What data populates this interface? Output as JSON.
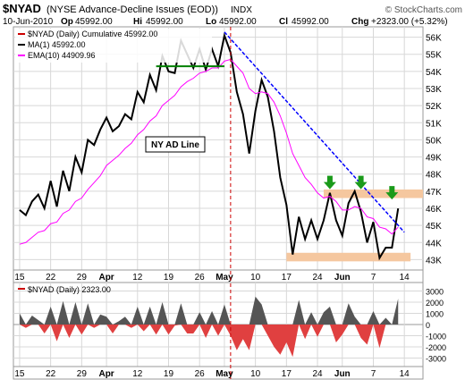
{
  "header": {
    "symbol": "$NYAD",
    "description": "(NYSE Advance-Decline Issues (EOD))",
    "exchange": "INDX",
    "watermark": "© StockCharts.com",
    "date": "10-Jun-2010",
    "op_label": "Op",
    "op_value": "45992.00",
    "hi_label": "Hi",
    "hi_value": "45992.00",
    "lo_label": "Lo",
    "lo_value": "45992.00",
    "cl_label": "Cl",
    "cl_value": "45992.00",
    "chg_label": "Chg",
    "chg_value": "+2323.00 (+5.32%)"
  },
  "colors": {
    "price_line": "#000000",
    "ema_line": "#ff00ff",
    "trend_line": "#0000ff",
    "resistance_line": "#008000",
    "band": "#f5c79f",
    "arrow": "#1a9a1a",
    "hist_pos": "#555555",
    "hist_neg": "#e04040",
    "vline": "#cc0000",
    "grid": "#d8d8d8"
  },
  "chart_data": [
    {
      "type": "line",
      "legend": [
        {
          "text": "$NYAD (Daily) Cumulative 45992.00",
          "color": "#cc0000"
        },
        {
          "text": "MA(1) 45992.00",
          "color": "#000000"
        },
        {
          "text": "EMA(10) 44909.96",
          "color": "#ff00ff"
        }
      ],
      "annotation": "NY AD Line",
      "xticks": [
        "15",
        "22",
        "29",
        "Apr",
        "12",
        "19",
        "26",
        "May",
        "10",
        "17",
        "24",
        "Jun",
        "7",
        "14"
      ],
      "xtick_pos": [
        0,
        5,
        10,
        14,
        19,
        24,
        29,
        33,
        38,
        43,
        48,
        52,
        57,
        62
      ],
      "yticks": [
        "43K",
        "44K",
        "45K",
        "46K",
        "47K",
        "48K",
        "49K",
        "50K",
        "51K",
        "52K",
        "53K",
        "54K",
        "55K",
        "56K"
      ],
      "ytick_vals": [
        43000,
        44000,
        45000,
        46000,
        47000,
        48000,
        49000,
        50000,
        51000,
        52000,
        53000,
        54000,
        55000,
        56000
      ],
      "ylim": [
        42500,
        56500
      ],
      "xlim": [
        -1,
        65
      ],
      "grid": true,
      "series": [
        {
          "key": "ad",
          "values": [
            45900,
            45600,
            46400,
            46800,
            46000,
            47600,
            46100,
            48200,
            47000,
            49000,
            48100,
            50000,
            49700,
            50600,
            51300,
            50500,
            50800,
            51500,
            51200,
            52800,
            52200,
            53800,
            52900,
            54900,
            54000,
            53900,
            55800,
            55000,
            54200,
            55300,
            54100,
            55300,
            54300,
            56100,
            55100,
            52800,
            51500,
            49200,
            51700,
            53500,
            52500,
            50500,
            47800,
            46200,
            43300,
            45500,
            44200,
            45300,
            44200,
            45300,
            46900,
            45300,
            44400,
            46300,
            47000,
            45800,
            44000,
            45200,
            43100,
            43700,
            43700,
            45992
          ]
        },
        {
          "key": "ema",
          "values": [
            43900,
            44000,
            44300,
            44600,
            44700,
            45100,
            45200,
            45700,
            45900,
            46400,
            46600,
            47100,
            47500,
            47900,
            48500,
            48800,
            49100,
            49500,
            49800,
            50300,
            50600,
            51100,
            51400,
            52000,
            52300,
            52600,
            53100,
            53400,
            53600,
            53900,
            54000,
            54200,
            54200,
            54600,
            54700,
            54300,
            53900,
            53000,
            52700,
            52800,
            52700,
            52200,
            51400,
            50400,
            49200,
            48500,
            47800,
            47400,
            46900,
            46600,
            46700,
            46400,
            45900,
            45900,
            46100,
            46000,
            45500,
            45400,
            44900,
            44800,
            44500,
            44900
          ]
        }
      ],
      "trendline": {
        "x": [
          33,
          62
        ],
        "y": [
          56300,
          44600
        ]
      },
      "resistance": {
        "x": [
          22,
          33
        ],
        "y": [
          54300,
          54300
        ]
      },
      "bands": [
        {
          "x": [
            49,
            65
          ],
          "y": [
            46600,
            47100
          ]
        },
        {
          "x": [
            43,
            63
          ],
          "y": [
            42900,
            43400
          ]
        }
      ],
      "arrows": [
        {
          "x": 50,
          "y": 47900
        },
        {
          "x": 55,
          "y": 47900
        },
        {
          "x": 60,
          "y": 47300
        }
      ],
      "vline_x": 34
    },
    {
      "type": "bar",
      "legend": [
        {
          "text": "$NYAD (Daily) 2323.00",
          "color": "#cc0000"
        }
      ],
      "yticks": [
        "-3000",
        "-2000",
        "-1000",
        "0",
        "1000",
        "2000",
        "3000"
      ],
      "ytick_vals": [
        -3000,
        -2000,
        -1000,
        0,
        1000,
        2000,
        3000
      ],
      "ylim": [
        -3600,
        3600
      ],
      "values": [
        1000,
        -300,
        800,
        400,
        -800,
        1600,
        -1500,
        2100,
        -1200,
        2000,
        -900,
        1900,
        -300,
        900,
        700,
        -800,
        300,
        700,
        -300,
        1600,
        -600,
        1600,
        -900,
        2000,
        -900,
        -100,
        1900,
        -800,
        -800,
        1100,
        -1200,
        1200,
        -1000,
        1800,
        -1000,
        -2300,
        -1300,
        -2300,
        2500,
        1800,
        -1000,
        -2000,
        -2700,
        -1600,
        -2900,
        2200,
        -1300,
        1100,
        -1100,
        1100,
        1600,
        -1600,
        -900,
        1900,
        700,
        -1200,
        -1800,
        1200,
        -2100,
        600,
        0,
        2323
      ]
    }
  ]
}
